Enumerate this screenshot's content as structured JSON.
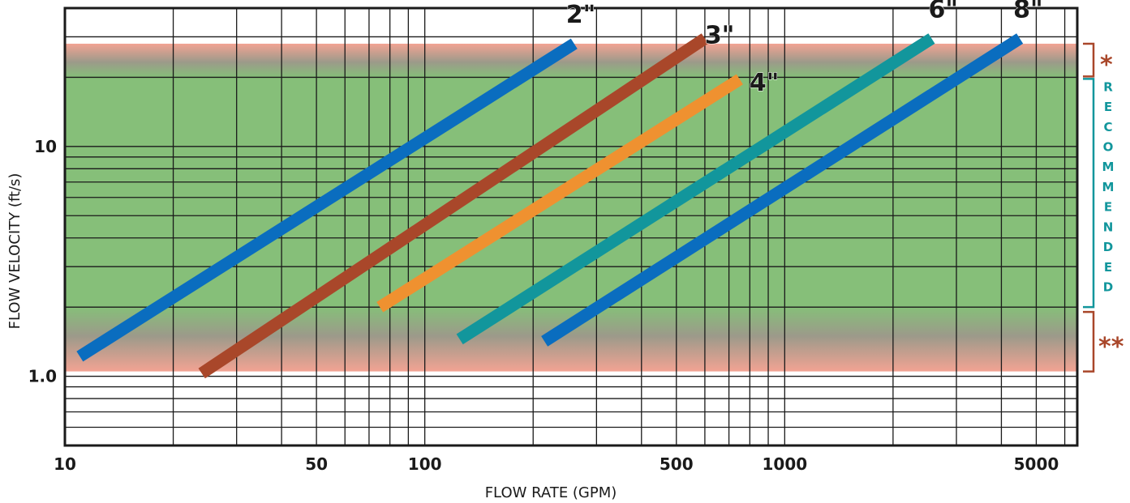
{
  "chart_data": {
    "type": "line",
    "xscale": "log",
    "yscale": "log",
    "xlabel": "FLOW RATE (GPM)",
    "ylabel": "FLOW VELOCITY (ft/s)",
    "xlim": [
      10,
      6500
    ],
    "ylim": [
      0.5,
      40
    ],
    "x_tick_labels": [
      {
        "value": 10,
        "label": "10"
      },
      {
        "value": 50,
        "label": "50"
      },
      {
        "value": 100,
        "label": "100"
      },
      {
        "value": 500,
        "label": "500"
      },
      {
        "value": 1000,
        "label": "1000"
      },
      {
        "value": 5000,
        "label": "5000"
      }
    ],
    "y_tick_labels": [
      {
        "value": 10,
        "label": "10"
      },
      {
        "value": 1,
        "label": "1.0"
      }
    ],
    "grid": true,
    "bands": {
      "upper_caution": [
        20,
        28
      ],
      "recommended": [
        2,
        20
      ],
      "lower_caution": [
        1.05,
        2
      ]
    },
    "series": [
      {
        "name": "2\"",
        "color": "#0a6dbf",
        "x": [
          11,
          260
        ],
        "y": [
          1.22,
          28
        ]
      },
      {
        "name": "3\"",
        "color": "#a9472a",
        "x": [
          24,
          600
        ],
        "y": [
          1.03,
          29.5
        ]
      },
      {
        "name": "4\"",
        "color": "#ef9130",
        "x": [
          75,
          750
        ],
        "y": [
          2.0,
          19.6
        ]
      },
      {
        "name": "6\"",
        "color": "#12969c",
        "x": [
          125,
          2560
        ],
        "y": [
          1.45,
          29.5
        ]
      },
      {
        "name": "8\"",
        "color": "#0a6dbf",
        "x": [
          215,
          4500
        ],
        "y": [
          1.42,
          29.5
        ]
      }
    ],
    "annotations": {
      "upper_marker": "*",
      "recommended_label": "RECOMMENDED",
      "lower_marker": "**"
    }
  },
  "colors": {
    "recommended_band": "#86bf79",
    "caution_band": "#f2a393",
    "grid": "#1a1a1a",
    "annotation_rust": "#a9472a",
    "annotation_teal": "#12969c"
  }
}
